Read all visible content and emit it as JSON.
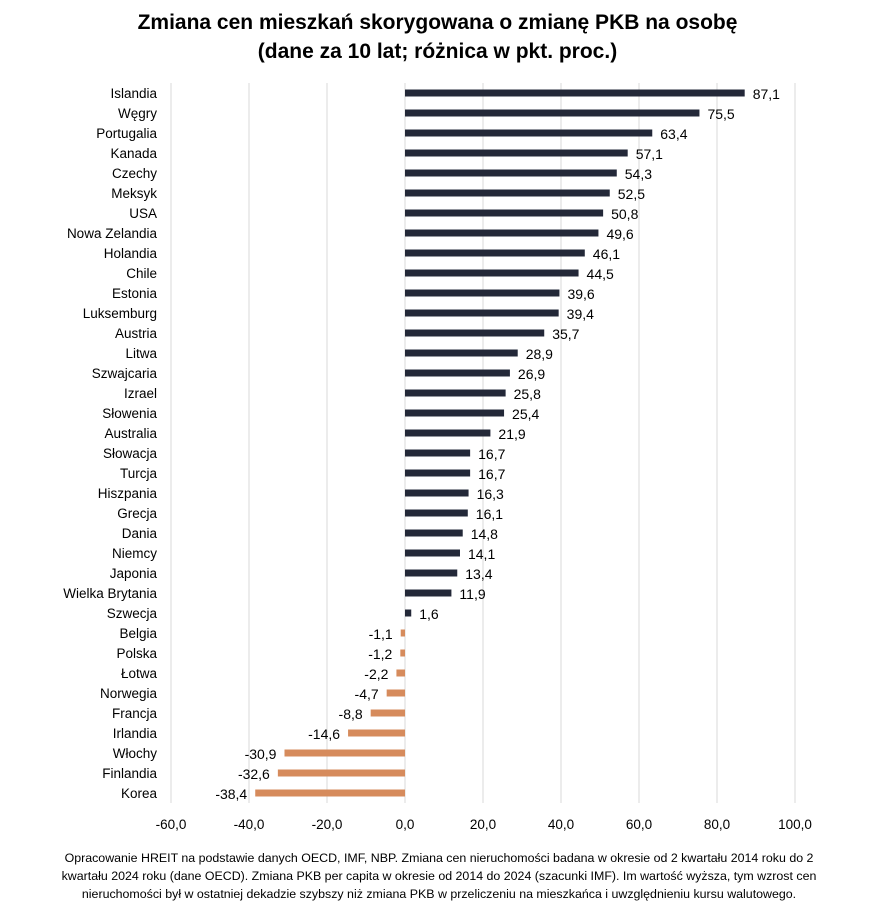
{
  "chart_data": {
    "type": "bar",
    "orientation": "horizontal",
    "title": [
      "Zmiana cen mieszkań skorygowana o zmianę PKB na osobę",
      "(dane za 10 lat; różnica w pkt. proc.)"
    ],
    "categories": [
      "Islandia",
      "Węgry",
      "Portugalia",
      "Kanada",
      "Czechy",
      "Meksyk",
      "USA",
      "Nowa Zelandia",
      "Holandia",
      "Chile",
      "Estonia",
      "Luksemburg",
      "Austria",
      "Litwa",
      "Szwajcaria",
      "Izrael",
      "Słowenia",
      "Australia",
      "Słowacja",
      "Turcja",
      "Hiszpania",
      "Grecja",
      "Dania",
      "Niemcy",
      "Japonia",
      "Wielka Brytania",
      "Szwecja",
      "Belgia",
      "Polska",
      "Łotwa",
      "Norwegia",
      "Francja",
      "Irlandia",
      "Włochy",
      "Finlandia",
      "Korea"
    ],
    "values": [
      87.1,
      75.5,
      63.4,
      57.1,
      54.3,
      52.5,
      50.8,
      49.6,
      46.1,
      44.5,
      39.6,
      39.4,
      35.7,
      28.9,
      26.9,
      25.8,
      25.4,
      21.9,
      16.7,
      16.7,
      16.3,
      16.1,
      14.8,
      14.1,
      13.4,
      11.9,
      1.6,
      -1.1,
      -1.2,
      -2.2,
      -4.7,
      -8.8,
      -14.6,
      -30.9,
      -32.6,
      -38.4
    ],
    "data_labels": [
      "87,1",
      "75,5",
      "63,4",
      "57,1",
      "54,3",
      "52,5",
      "50,8",
      "49,6",
      "46,1",
      "44,5",
      "39,6",
      "39,4",
      "35,7",
      "28,9",
      "26,9",
      "25,8",
      "25,4",
      "21,9",
      "16,7",
      "16,7",
      "16,3",
      "16,1",
      "14,8",
      "14,1",
      "13,4",
      "11,9",
      "1,6",
      "-1,1",
      "-1,2",
      "-2,2",
      "-4,7",
      "-8,8",
      "-14,6",
      "-30,9",
      "-32,6",
      "-38,4"
    ],
    "xlim": [
      -60,
      100
    ],
    "xticks": [
      -60,
      -40,
      -20,
      0,
      20,
      40,
      60,
      80,
      100
    ],
    "xtick_labels": [
      "-60,0",
      "-40,0",
      "-20,0",
      "0,0",
      "20,0",
      "40,0",
      "60,0",
      "80,0",
      "100,0"
    ],
    "grid": "vertical",
    "legend": "none",
    "colors": {
      "positive": "#232838",
      "negative": "#d68b5c",
      "grid": "#d9d9d9"
    },
    "footnote": [
      "Opracowanie HREIT na podstawie danych OECD, IMF, NBP. Zmiana cen nieruchomości badana w okresie od 2 kwartału 2014 roku do 2",
      "kwartału 2024 roku (dane OECD). Zmiana PKB per capita w okresie od 2014 do 2024 (szacunki IMF). Im wartość wyższa, tym wzrost cen",
      "nieruchomości był w ostatniej dekadzie szybszy niż zmiana PKB w przeliczeniu na mieszkańca i uwzględnieniu kursu walutowego."
    ]
  }
}
